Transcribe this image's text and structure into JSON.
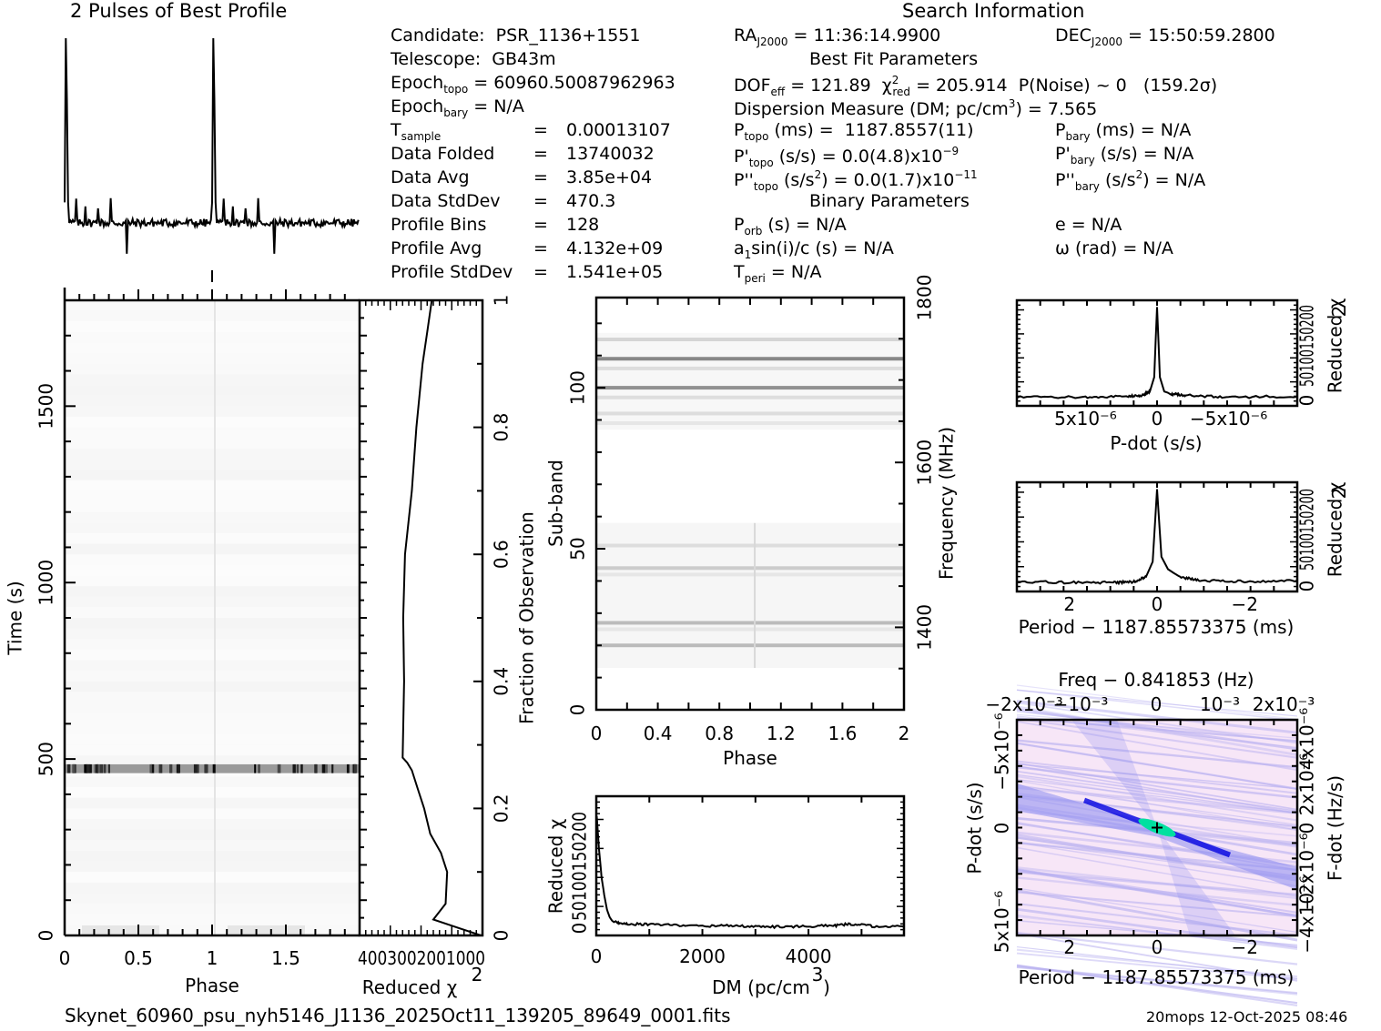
{
  "profile_title": "2 Pulses of Best Profile",
  "search_title": "Search Information",
  "candidate_info": {
    "candidate_label": "Candidate:",
    "candidate": "PSR_1136+1551",
    "telescope_label": "Telescope:",
    "telescope": "GB43m",
    "epoch_topo": "60960.50087962963",
    "epoch_bary": "N/A",
    "rows": [
      {
        "label": "T",
        "sub": "sample",
        "value": "0.00013107"
      },
      {
        "label": "Data Folded",
        "sub": "",
        "value": "13740032"
      },
      {
        "label": "Data Avg",
        "sub": "",
        "value": "3.85e+04"
      },
      {
        "label": "Data StdDev",
        "sub": "",
        "value": "470.3"
      },
      {
        "label": "Profile Bins",
        "sub": "",
        "value": "128"
      },
      {
        "label": "Profile Avg",
        "sub": "",
        "value": "4.132e+09"
      },
      {
        "label": "Profile StdDev",
        "sub": "",
        "value": "1.541e+05"
      }
    ]
  },
  "search_info": {
    "ra": "11:36:14.9900",
    "dec": "15:50:59.2800",
    "best_fit_title": "Best Fit Parameters",
    "dof_eff": "121.89",
    "chi2_red": "205.914",
    "p_noise": "~ 0",
    "sigma": "(159.2σ)",
    "dm": "7.565",
    "p_topo": "1187.8557(11)",
    "p_bary": "N/A",
    "pd_topo": "0.0(4.8)x10",
    "pd_topo_exp": "−9",
    "pd_bary": "N/A",
    "pdd_topo": "0.0(1.7)x10",
    "pdd_topo_exp": "−11",
    "pdd_bary": "N/A",
    "binary_title": "Binary Parameters",
    "p_orb": "N/A",
    "e": "N/A",
    "a1sini": "N/A",
    "omega": "N/A",
    "t_peri": "N/A"
  },
  "filename": "Skynet_60960_psu_nyh5146_J1136_2025Oct11_139205_89649_0001.fits",
  "footer": "20mops 12-Oct-2025 08:46",
  "chart_data": [
    {
      "id": "profile",
      "type": "line",
      "title": "2 Pulses of Best Profile",
      "xlim": [
        0,
        2
      ],
      "pulse_peaks_phase": [
        0.02,
        1.02
      ],
      "baseline": 0.1,
      "note": "normalized profile, 128 bins, repeated twice"
    },
    {
      "id": "time-phase",
      "type": "heatmap",
      "xlabel": "Phase",
      "ylabel": "Time (s)",
      "xlim": [
        0,
        2
      ],
      "ylim": [
        0,
        1800
      ],
      "xticks": [
        "0",
        "0.5",
        "1",
        "1.5"
      ],
      "yticks": [
        "0",
        "500",
        "1000",
        "1500"
      ],
      "bright_band_time_s": [
        460,
        485
      ]
    },
    {
      "id": "chi2-vs-fraction",
      "type": "line",
      "xlabel": "Reduced χ²",
      "ylabel": "Fraction of Observation",
      "xlim": [
        400,
        0
      ],
      "ylim": [
        0,
        1
      ],
      "xticks": [
        "400",
        "300",
        "200",
        "100",
        "0"
      ],
      "yticks": [
        "0",
        "0.2",
        "0.4",
        "0.6",
        "0.8",
        "1"
      ],
      "x": [
        5,
        160,
        120,
        115,
        135,
        170,
        190,
        210,
        230,
        245,
        260,
        255,
        258,
        252,
        230,
        215,
        205,
        195,
        180,
        165
      ],
      "y": [
        0.0,
        0.025,
        0.05,
        0.1,
        0.13,
        0.16,
        0.2,
        0.23,
        0.26,
        0.272,
        0.28,
        0.4,
        0.5,
        0.6,
        0.7,
        0.8,
        0.85,
        0.9,
        0.95,
        1.0
      ]
    },
    {
      "id": "subband-phase",
      "type": "heatmap",
      "xlabel": "Phase",
      "ylabel": "Sub-band",
      "y2label": "Frequency (MHz)",
      "xlim": [
        0,
        2
      ],
      "ylim": [
        0,
        128
      ],
      "xticks": [
        "0",
        "0.4",
        "0.8",
        "1.2",
        "1.6",
        "2"
      ],
      "yticks": [
        "0",
        "50",
        "100"
      ],
      "y2ticks": [
        "1400",
        "1600",
        "1800"
      ],
      "y2lim": [
        1300,
        1800
      ],
      "bands": [
        {
          "sub": 115,
          "level": 0.25
        },
        {
          "sub": 109,
          "level": 0.7
        },
        {
          "sub": 106,
          "level": 0.2
        },
        {
          "sub": 100,
          "level": 0.65
        },
        {
          "sub": 97,
          "level": 0.2
        },
        {
          "sub": 92,
          "level": 0.2
        },
        {
          "sub": 89,
          "level": 0.15
        },
        {
          "sub": 51,
          "level": 0.2
        },
        {
          "sub": 44,
          "level": 0.3
        },
        {
          "sub": 42,
          "level": 0.15
        },
        {
          "sub": 27,
          "level": 0.4
        },
        {
          "sub": 25,
          "level": 0.15
        },
        {
          "sub": 20,
          "level": 0.4
        }
      ]
    },
    {
      "id": "dm-chi2",
      "type": "line",
      "xlabel": "DM (pc/cm³)",
      "ylabel": "Reduced χ²",
      "xlim": [
        0,
        5800
      ],
      "ylim": [
        0,
        240
      ],
      "xticks": [
        "0",
        "2000",
        "4000"
      ],
      "yticks": [
        "0",
        "50",
        "100",
        "150",
        "200"
      ],
      "x": [
        0,
        8,
        50,
        100,
        150,
        200,
        250,
        300,
        400,
        600,
        1000,
        1500,
        2000,
        2500,
        3000,
        3500,
        4000,
        4500,
        4800,
        5200,
        5800
      ],
      "y": [
        200,
        206,
        150,
        100,
        70,
        45,
        32,
        25,
        22,
        20,
        19,
        18,
        16,
        17,
        15,
        15,
        16,
        17,
        20,
        16,
        15
      ]
    },
    {
      "id": "pdot-chi2",
      "type": "line",
      "xlabel": "P-dot (s/s)",
      "ylabel": "Reduced χ²",
      "xlim": [
        9.8e-06,
        -9.8e-06
      ],
      "ylim": [
        0,
        220
      ],
      "xticks": [
        "5x10⁻⁶",
        "0",
        "−5x10⁻⁶"
      ],
      "yticks": [
        "0",
        "50",
        "100",
        "150",
        "200"
      ],
      "x": [
        9.8e-06,
        5e-06,
        2e-06,
        1e-06,
        5e-07,
        2e-07,
        0,
        -2e-07,
        -5e-07,
        -1e-06,
        -2e-06,
        -5e-06,
        -9.8e-06
      ],
      "y": [
        18,
        18,
        20,
        22,
        30,
        60,
        206,
        60,
        30,
        25,
        22,
        18,
        20
      ]
    },
    {
      "id": "period-chi2",
      "type": "line",
      "xlabel": "Period − 1187.85573375 (ms)",
      "ylabel": "Reduced χ²",
      "xlim": [
        3.2,
        -3.2
      ],
      "ylim": [
        0,
        220
      ],
      "xticks": [
        "2",
        "0",
        "−2"
      ],
      "yticks": [
        "0",
        "50",
        "100",
        "150",
        "200"
      ],
      "x": [
        3.2,
        2.0,
        1.0,
        0.5,
        0.25,
        0.1,
        0.0,
        -0.1,
        -0.25,
        -0.5,
        -1.0,
        -2.0,
        -3.2
      ],
      "y": [
        20,
        18,
        18,
        20,
        30,
        60,
        206,
        70,
        45,
        30,
        22,
        20,
        22
      ]
    },
    {
      "id": "period-pdot",
      "type": "heatmap",
      "title": "Freq − 0.841853 (Hz)",
      "xlabel": "Period − 1187.85573375 (ms)",
      "ylabel": "P-dot (s/s)",
      "y2label": "F-dot (Hz/s)",
      "xlim": [
        3.2,
        -3.2
      ],
      "ylim": [
        9e-06,
        -9e-06
      ],
      "xticks": [
        "2",
        "0",
        "−2"
      ],
      "x2ticks": [
        "−2x10⁻³",
        "−10⁻³",
        "0",
        "10⁻³",
        "2x10⁻³"
      ],
      "yticks": [
        "5x10⁻⁶",
        "0",
        "−5x10⁻⁶"
      ],
      "y2ticks": [
        "−4x10⁻⁶",
        "−2x10⁻⁶",
        "0",
        "2x10⁻⁶",
        "4x10⁻⁶"
      ],
      "peak": [
        0,
        0
      ],
      "colors": {
        "low": "#f7e6f7",
        "mid": "#8c8cf0",
        "high": "#0000e0",
        "peak": "#00e0a0"
      }
    }
  ]
}
